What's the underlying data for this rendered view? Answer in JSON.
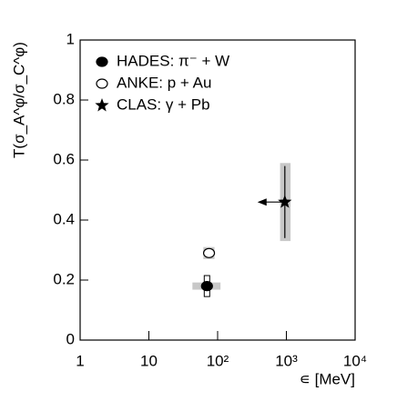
{
  "chart_data": {
    "type": "scatter",
    "ylabel": "T(σ_A^φ/σ_C^φ)",
    "xlabel": "∊ [MeV]",
    "log_x": true,
    "xlim": [
      1,
      10000
    ],
    "xticks": [
      1,
      10,
      {
        "value": 100,
        "label": "10²"
      },
      {
        "value": 1000,
        "label": "10³"
      },
      {
        "value": 10000,
        "label": "10⁴"
      }
    ],
    "ylim": [
      0,
      1
    ],
    "yticks": [
      0,
      0.2,
      0.4,
      0.6,
      0.8,
      1
    ],
    "legend": "upper left",
    "series": [
      {
        "name": "HADES: π⁻ + W",
        "marker": "filled-circle",
        "color": "#000000",
        "x": [
          70
        ],
        "values": [
          0.18
        ],
        "yerr": [
          0.035
        ],
        "sys_xlo": [
          43
        ],
        "sys_xhi": [
          110
        ],
        "sys_yerr": [
          0.012
        ]
      },
      {
        "name": "ANKE: p + Au",
        "marker": "open-circle",
        "color": "#000000",
        "x": [
          75
        ],
        "values": [
          0.29
        ],
        "yerr": [
          0.01
        ],
        "sys_xlo": [
          62
        ],
        "sys_xhi": [
          90
        ],
        "sys_yerr": [
          0.02
        ]
      },
      {
        "name": "CLAS: γ + Pb",
        "marker": "star",
        "color": "#000000",
        "x": [
          950
        ],
        "values": [
          0.46
        ],
        "yerr": [
          0.12
        ],
        "sys_xlo": [
          810
        ],
        "sys_xhi": [
          1150
        ],
        "sys_yerr": [
          0.13
        ],
        "limit_x": [
          380
        ]
      }
    ]
  }
}
